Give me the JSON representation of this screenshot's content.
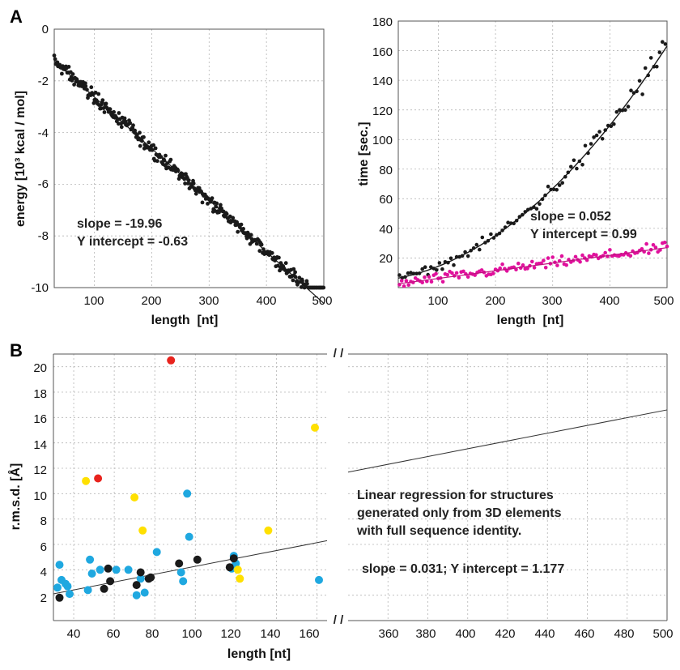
{
  "panel_labels": {
    "a": "A",
    "b": "B"
  },
  "chart_data": [
    {
      "id": "energy",
      "type": "scatter",
      "title": "",
      "xlabel": "length  [nt]",
      "ylabel": "energy [10³ kcal / mol]",
      "xlim": [
        30,
        500
      ],
      "ylim": [
        -10,
        0
      ],
      "xticks": [
        "100",
        "200",
        "300",
        "400",
        "500"
      ],
      "yticks": [
        "0",
        "-2",
        "-4",
        "-6",
        "-8",
        "-10"
      ],
      "grid": true,
      "annotations": [
        "slope = -19.96",
        "Y intercept = -0.63"
      ],
      "series": [
        {
          "color": "#1a1a1a",
          "fit": {
            "slope": -0.01996,
            "intercept": -0.63
          }
        }
      ]
    },
    {
      "id": "time",
      "type": "scatter",
      "title": "",
      "xlabel": "length  [nt]",
      "ylabel": "time [sec.]",
      "xlim": [
        30,
        500
      ],
      "ylim": [
        0,
        180
      ],
      "xticks": [
        "100",
        "200",
        "300",
        "400",
        "500"
      ],
      "yticks": [
        "20",
        "40",
        "60",
        "80",
        "100",
        "120",
        "140",
        "160",
        "180"
      ],
      "grid": true,
      "annotations": [
        "slope = 0.052",
        "Y intercept = 0.99"
      ],
      "series": [
        {
          "color": "#1a1a1a",
          "fit": {
            "a": 0.000548,
            "b": 0.0432,
            "c": 4.6
          }
        },
        {
          "color": "#e0119c",
          "fit": {
            "slope": 0.052,
            "intercept": 0.99
          }
        }
      ]
    },
    {
      "id": "rmsd",
      "type": "scatter",
      "title": "",
      "xlabel": "length [nt]",
      "ylabel": "r.m.s.d. [Å]",
      "xlim_left": [
        30,
        165
      ],
      "xlim_right": [
        340,
        500
      ],
      "ylim": [
        0,
        21
      ],
      "xticks_left": [
        "40",
        "60",
        "80",
        "100",
        "120",
        "140",
        "160"
      ],
      "xticks_right": [
        "360",
        "380",
        "400",
        "420",
        "440",
        "460",
        "480",
        "500"
      ],
      "yticks": [
        "2",
        "4",
        "6",
        "8",
        "10",
        "12",
        "14",
        "16",
        "18",
        "20"
      ],
      "grid": true,
      "axis_break": "/ /",
      "annotations": [
        "Linear regression for structures",
        "generated only from 3D elements",
        "with full sequence identity.",
        "slope = 0.031; Y intercept = 1.177"
      ],
      "regression": {
        "slope": 0.031,
        "intercept": 1.177
      },
      "series": [
        {
          "color": "#1fa8e0",
          "points": [
            [
              32,
              2.6
            ],
            [
              33,
              4.4
            ],
            [
              34,
              3.2
            ],
            [
              36,
              2.9
            ],
            [
              37,
              2.7
            ],
            [
              38,
              2.1
            ],
            [
              47,
              2.4
            ],
            [
              48,
              4.8
            ],
            [
              49,
              3.7
            ],
            [
              53,
              4.0
            ],
            [
              61,
              4.0
            ],
            [
              67,
              4.0
            ],
            [
              71,
              2.0
            ],
            [
              73,
              3.3
            ],
            [
              75,
              2.2
            ],
            [
              81,
              5.4
            ],
            [
              93,
              3.8
            ],
            [
              94,
              3.1
            ],
            [
              96,
              10.0
            ],
            [
              97,
              6.6
            ],
            [
              118,
              4.1
            ],
            [
              119,
              5.1
            ],
            [
              120,
              4.5
            ],
            [
              161,
              3.2
            ]
          ]
        },
        {
          "color": "#ffe000",
          "points": [
            [
              46,
              11.0
            ],
            [
              70,
              9.7
            ],
            [
              74,
              7.1
            ],
            [
              121,
              4.0
            ],
            [
              122,
              3.3
            ],
            [
              136,
              7.1
            ],
            [
              159,
              15.2
            ]
          ]
        },
        {
          "color": "#1a1a1a",
          "points": [
            [
              33,
              1.8
            ],
            [
              55,
              2.5
            ],
            [
              57,
              4.1
            ],
            [
              58,
              3.1
            ],
            [
              71,
              2.8
            ],
            [
              73,
              3.8
            ],
            [
              77,
              3.3
            ],
            [
              78,
              3.4
            ],
            [
              92,
              4.5
            ],
            [
              101,
              4.8
            ],
            [
              117,
              4.2
            ],
            [
              119,
              4.9
            ]
          ]
        },
        {
          "color": "#e8231d",
          "points": [
            [
              52,
              11.2
            ],
            [
              88,
              20.5
            ]
          ]
        }
      ]
    }
  ]
}
